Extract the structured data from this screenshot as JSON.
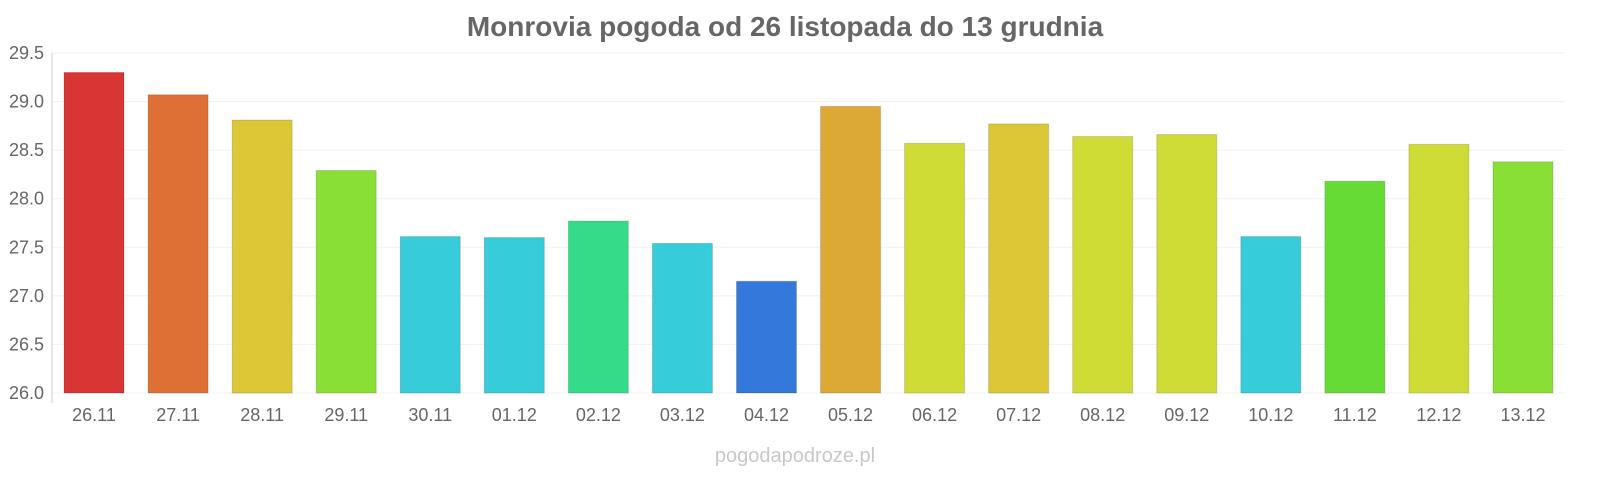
{
  "chart_data": {
    "type": "bar",
    "title": "Monrovia pogoda od 26 listopada do 13 grudnia",
    "xlabel": "",
    "ylabel": "",
    "ylim": [
      26.0,
      29.5
    ],
    "yticks": [
      "26.0",
      "26.5",
      "27.0",
      "27.5",
      "28.0",
      "28.5",
      "29.0",
      "29.5"
    ],
    "grid": true,
    "categories": [
      "26.11",
      "27.11",
      "28.11",
      "29.11",
      "30.11",
      "01.12",
      "02.12",
      "03.12",
      "04.12",
      "05.12",
      "06.12",
      "07.12",
      "08.12",
      "09.12",
      "10.12",
      "11.12",
      "12.12",
      "13.12"
    ],
    "values": [
      29.3,
      29.07,
      28.81,
      28.29,
      27.61,
      27.6,
      27.77,
      27.54,
      27.15,
      28.95,
      28.57,
      28.77,
      28.64,
      28.66,
      27.61,
      28.18,
      28.56,
      28.38
    ],
    "colors": [
      "#d93535",
      "#df7035",
      "#dcc836",
      "#8adf36",
      "#36ccd9",
      "#36ccd9",
      "#36db8a",
      "#36ccd9",
      "#3578db",
      "#dca836",
      "#d0dc36",
      "#dcc836",
      "#d0dc36",
      "#d0dc36",
      "#36ccd9",
      "#66db36",
      "#d0dc36",
      "#8adf36"
    ]
  },
  "watermark": "pogodapodroze.pl"
}
